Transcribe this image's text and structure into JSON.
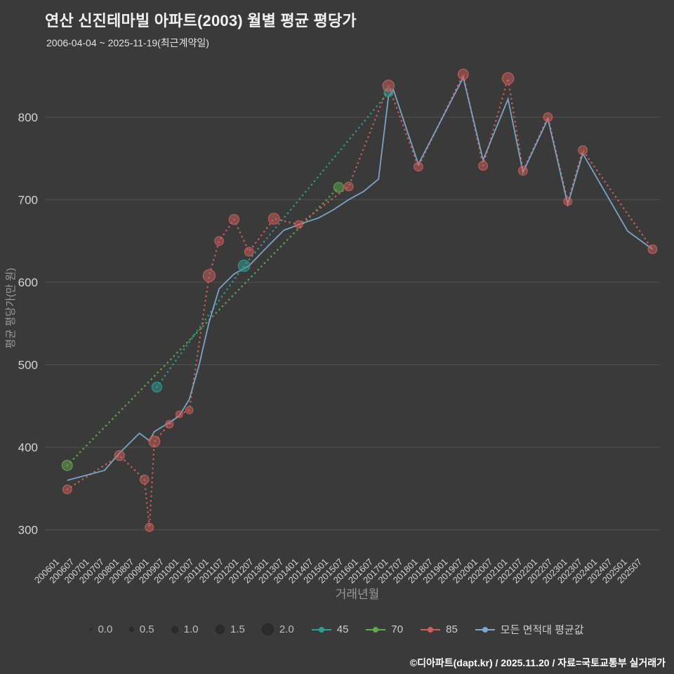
{
  "title": "연산 신진테마빌 아파트(2003) 월별 평균 평당가",
  "subtitle": "2006-04-04 ~ 2025-11-19(최근계약일)",
  "footer": "©디아파트(dapt.kr) / 2025.11.20 / 자료=국토교통부 실거래가",
  "colors": {
    "background": "#3a3a3a",
    "grid": "#515151",
    "tick_text": "#d4d4d4",
    "axis_label": "#9a9a9a",
    "title_text": "#f2f2f2",
    "size_dot": "#2b2b2b",
    "series_45": "#2f9e94",
    "series_70": "#63a84c",
    "series_85": "#cd5f5c",
    "series_avg": "#7fa8cc"
  },
  "legend": {
    "sizes": [
      "0.0",
      "0.5",
      "1.0",
      "1.5",
      "2.0"
    ]
  },
  "chart_data": {
    "type": "scatter",
    "title": "연산 신진테마빌 아파트(2003) 월별 평균 평당가",
    "xlabel": "거래년월",
    "ylabel": "평균 평당가(만 원)",
    "ylim": [
      275,
      862
    ],
    "yticks": [
      300,
      400,
      500,
      600,
      700,
      800
    ],
    "xticks": [
      "200601",
      "200607",
      "200701",
      "200707",
      "200801",
      "200807",
      "200901",
      "200907",
      "201001",
      "201007",
      "201101",
      "201107",
      "201201",
      "201207",
      "201301",
      "201307",
      "201401",
      "201407",
      "201501",
      "201507",
      "201601",
      "201607",
      "201701",
      "201707",
      "201801",
      "201807",
      "201901",
      "201907",
      "202001",
      "202007",
      "202101",
      "202107",
      "202201",
      "202207",
      "202301",
      "202307",
      "202401",
      "202407",
      "202501",
      "202507"
    ],
    "legend_position": "bottom",
    "grid": true,
    "series": [
      {
        "name": "45",
        "color": "#2f9e94",
        "style": "dotted",
        "points": [
          {
            "x": "200904",
            "y": 473,
            "s": 1.2
          },
          {
            "x": "201203",
            "y": 620,
            "s": 1.5
          },
          {
            "x": "201701",
            "y": 830,
            "s": 1.0
          }
        ]
      },
      {
        "name": "70",
        "color": "#63a84c",
        "style": "dotted",
        "points": [
          {
            "x": "200604",
            "y": 378,
            "s": 1.3
          },
          {
            "x": "201505",
            "y": 715,
            "s": 1.2
          }
        ]
      },
      {
        "name": "85",
        "color": "#cd5f5c",
        "style": "dotted",
        "points": [
          {
            "x": "200604",
            "y": 349,
            "s": 1.0
          },
          {
            "x": "200801",
            "y": 390,
            "s": 1.2
          },
          {
            "x": "200811",
            "y": 361,
            "s": 1.0
          },
          {
            "x": "200901",
            "y": 303,
            "s": 0.9
          },
          {
            "x": "200903",
            "y": 407,
            "s": 1.4
          },
          {
            "x": "200909",
            "y": 428,
            "s": 0.8
          },
          {
            "x": "201001",
            "y": 440,
            "s": 0.6
          },
          {
            "x": "201005",
            "y": 445,
            "s": 0.7
          },
          {
            "x": "201101",
            "y": 608,
            "s": 1.6
          },
          {
            "x": "201105",
            "y": 650,
            "s": 1.0
          },
          {
            "x": "201111",
            "y": 676,
            "s": 1.2
          },
          {
            "x": "201205",
            "y": 637,
            "s": 1.0
          },
          {
            "x": "201303",
            "y": 677,
            "s": 1.4
          },
          {
            "x": "201401",
            "y": 670,
            "s": 0.8
          },
          {
            "x": "201509",
            "y": 716,
            "s": 1.0
          },
          {
            "x": "201701",
            "y": 838,
            "s": 1.5
          },
          {
            "x": "201801",
            "y": 740,
            "s": 1.0
          },
          {
            "x": "201907",
            "y": 852,
            "s": 1.3
          },
          {
            "x": "202003",
            "y": 741,
            "s": 1.0
          },
          {
            "x": "202101",
            "y": 847,
            "s": 1.5
          },
          {
            "x": "202107",
            "y": 735,
            "s": 1.0
          },
          {
            "x": "202205",
            "y": 800,
            "s": 1.0
          },
          {
            "x": "202301",
            "y": 698,
            "s": 0.9
          },
          {
            "x": "202307",
            "y": 760,
            "s": 1.0
          },
          {
            "x": "202511",
            "y": 640,
            "s": 1.0
          }
        ]
      },
      {
        "name": "모든 면적대 평균값",
        "color": "#7fa8cc",
        "style": "solid",
        "markers": false,
        "points": [
          {
            "x": "200604",
            "y": 360
          },
          {
            "x": "200707",
            "y": 372
          },
          {
            "x": "200801",
            "y": 393
          },
          {
            "x": "200809",
            "y": 417
          },
          {
            "x": "200901",
            "y": 408
          },
          {
            "x": "200903",
            "y": 419
          },
          {
            "x": "200909",
            "y": 430
          },
          {
            "x": "201001",
            "y": 438
          },
          {
            "x": "201005",
            "y": 458
          },
          {
            "x": "201009",
            "y": 500
          },
          {
            "x": "201101",
            "y": 552
          },
          {
            "x": "201105",
            "y": 592
          },
          {
            "x": "201111",
            "y": 610
          },
          {
            "x": "201205",
            "y": 620
          },
          {
            "x": "201301",
            "y": 645
          },
          {
            "x": "201307",
            "y": 663
          },
          {
            "x": "201403",
            "y": 672
          },
          {
            "x": "201409",
            "y": 678
          },
          {
            "x": "201503",
            "y": 688
          },
          {
            "x": "201509",
            "y": 700
          },
          {
            "x": "201603",
            "y": 710
          },
          {
            "x": "201609",
            "y": 725
          },
          {
            "x": "201701",
            "y": 825
          },
          {
            "x": "201703",
            "y": 833
          },
          {
            "x": "201801",
            "y": 743
          },
          {
            "x": "201907",
            "y": 848
          },
          {
            "x": "202003",
            "y": 748
          },
          {
            "x": "202101",
            "y": 822
          },
          {
            "x": "202107",
            "y": 733
          },
          {
            "x": "202205",
            "y": 798
          },
          {
            "x": "202301",
            "y": 694
          },
          {
            "x": "202307",
            "y": 756
          },
          {
            "x": "202501",
            "y": 662
          },
          {
            "x": "202511",
            "y": 640
          }
        ]
      }
    ]
  }
}
